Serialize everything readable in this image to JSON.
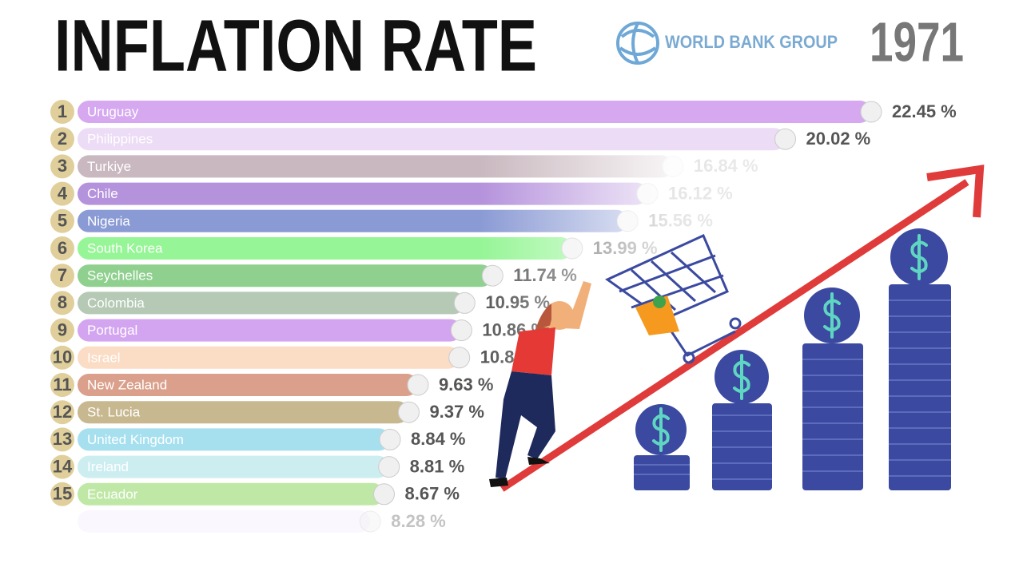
{
  "chart_data": {
    "type": "bar",
    "orientation": "horizontal",
    "title": "INFLATION RATE",
    "source": "WORLD BANK GROUP",
    "year": "1971",
    "ranks": [
      1,
      2,
      3,
      4,
      5,
      6,
      7,
      8,
      9,
      10,
      11,
      12,
      13,
      14,
      15,
      null
    ],
    "categories": [
      "Uruguay",
      "Philippines",
      "Turkiye",
      "Chile",
      "Nigeria",
      "South Korea",
      "Seychelles",
      "Colombia",
      "Portugal",
      "Israel",
      "New Zealand",
      "St. Lucia",
      "United Kingdom",
      "Ireland",
      "Ecuador",
      null
    ],
    "values": [
      22.45,
      20.02,
      16.84,
      16.12,
      15.56,
      13.99,
      11.74,
      10.95,
      10.86,
      10.8,
      9.63,
      9.37,
      8.84,
      8.81,
      8.67,
      8.28
    ],
    "value_labels": [
      "22.45 %",
      "20.02 %",
      "16.84 %",
      "16.12 %",
      "15.56 %",
      "13.99 %",
      "11.74 %",
      "10.95 %",
      "10.86 %",
      "10.80 %",
      "9.63 %",
      "9.37 %",
      "8.84 %",
      "8.81 %",
      "8.67 %",
      "8.28 %"
    ],
    "colors": [
      "#d6a8f0",
      "#ecdcf6",
      "#c9b8bf",
      "#b592dc",
      "#8a9ad4",
      "#96f596",
      "#8fd08f",
      "#b5c9b5",
      "#d3a5f0",
      "#fbdcc5",
      "#dba08c",
      "#c8b890",
      "#a6e0ef",
      "#cdeef1",
      "#bfe8a6",
      "#f3e8fb"
    ]
  }
}
